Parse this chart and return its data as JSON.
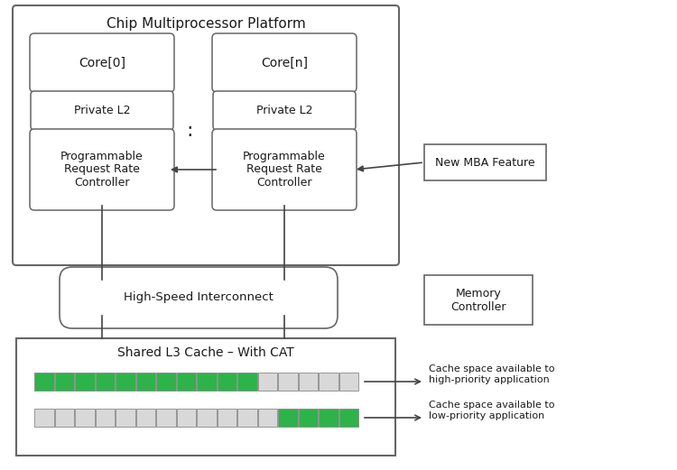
{
  "title": "Chip Multiprocessor Platform",
  "bg_color": "#ffffff",
  "box_edge_color": "#666666",
  "box_face_color": "#ffffff",
  "green_color": "#2db34a",
  "gray_cell_color": "#d8d8d8",
  "font_color": "#1a1a1a",
  "labels": {
    "core0": "Core[0]",
    "coren": "Core[n]",
    "priv_l2_0": "Private L2",
    "priv_l2_n": "Private L2",
    "prog0": "Programmable\nRequest Rate\nController",
    "progn": "Programmable\nRequest Rate\nController",
    "interconnect": "High-Speed Interconnect",
    "memory": "Memory\nController",
    "shared_l3": "Shared L3 Cache – With CAT",
    "mba_feature": "New MBA Feature",
    "cache_high": "Cache space available to\nhigh-priority application",
    "cache_low": "Cache space available to\nlow-priority application"
  },
  "cache_bar1_green": 11,
  "cache_bar2_green": 4,
  "cache_total": 16,
  "dots": ":",
  "figw": 7.5,
  "figh": 5.21,
  "dpi": 100
}
